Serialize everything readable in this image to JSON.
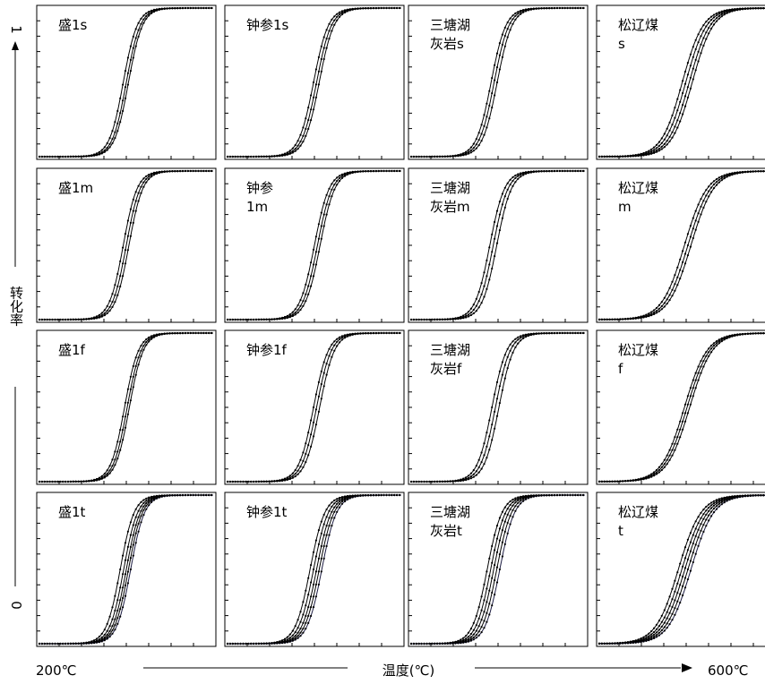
{
  "figure": {
    "y_axis": {
      "top_label": "1",
      "bottom_label": "0",
      "title": "转化率"
    },
    "x_axis": {
      "left_label": "200℃",
      "right_label": "600℃",
      "title": "温度(℃)"
    }
  },
  "chart_data": {
    "type": "line",
    "x_range": [
      200,
      600
    ],
    "y_range": [
      0,
      1
    ],
    "grid": false,
    "columns": [
      "盛1",
      "钟参1",
      "三塘湖灰岩",
      "松辽煤"
    ],
    "rows": [
      "s",
      "m",
      "f",
      "t"
    ],
    "panels": [
      {
        "row": 0,
        "col": 0,
        "label_lines": [
          "盛1s"
        ],
        "curves": [
          {
            "mid": 393,
            "scale": 16
          },
          {
            "mid": 400,
            "scale": 16
          },
          {
            "mid": 405,
            "scale": 16
          }
        ]
      },
      {
        "row": 0,
        "col": 1,
        "label_lines": [
          "钟参1s"
        ],
        "curves": [
          {
            "mid": 398,
            "scale": 17
          },
          {
            "mid": 405,
            "scale": 17
          },
          {
            "mid": 411,
            "scale": 17
          }
        ]
      },
      {
        "row": 0,
        "col": 2,
        "label_lines": [
          "三塘湖",
          "灰岩s"
        ],
        "curves": [
          {
            "mid": 384,
            "scale": 17
          },
          {
            "mid": 391,
            "scale": 17
          },
          {
            "mid": 398,
            "scale": 17
          }
        ]
      },
      {
        "row": 0,
        "col": 3,
        "label_lines": [
          "松辽煤",
          "s"
        ],
        "curves": [
          {
            "mid": 391,
            "scale": 24
          },
          {
            "mid": 399,
            "scale": 24
          },
          {
            "mid": 407,
            "scale": 24
          },
          {
            "mid": 414,
            "scale": 24
          }
        ]
      },
      {
        "row": 1,
        "col": 0,
        "label_lines": [
          "盛1m"
        ],
        "curves": [
          {
            "mid": 393,
            "scale": 16
          },
          {
            "mid": 400,
            "scale": 16
          },
          {
            "mid": 406,
            "scale": 16
          }
        ]
      },
      {
        "row": 1,
        "col": 1,
        "label_lines": [
          "钟参",
          "1m"
        ],
        "curves": [
          {
            "mid": 400,
            "scale": 17
          },
          {
            "mid": 407,
            "scale": 17
          },
          {
            "mid": 413,
            "scale": 17
          }
        ]
      },
      {
        "row": 1,
        "col": 2,
        "label_lines": [
          "三塘湖",
          "灰岩m"
        ],
        "curves": [
          {
            "mid": 381,
            "scale": 17
          },
          {
            "mid": 389,
            "scale": 17
          },
          {
            "mid": 397,
            "scale": 17
          }
        ]
      },
      {
        "row": 1,
        "col": 3,
        "label_lines": [
          "松辽煤",
          "m"
        ],
        "curves": [
          {
            "mid": 396,
            "scale": 26
          },
          {
            "mid": 404,
            "scale": 26
          },
          {
            "mid": 411,
            "scale": 26
          }
        ]
      },
      {
        "row": 2,
        "col": 0,
        "label_lines": [
          "盛1f"
        ],
        "curves": [
          {
            "mid": 396,
            "scale": 16
          },
          {
            "mid": 402,
            "scale": 16
          },
          {
            "mid": 407,
            "scale": 16
          }
        ]
      },
      {
        "row": 2,
        "col": 1,
        "label_lines": [
          "钟参1f"
        ],
        "curves": [
          {
            "mid": 398,
            "scale": 17
          },
          {
            "mid": 405,
            "scale": 17
          },
          {
            "mid": 412,
            "scale": 17
          }
        ]
      },
      {
        "row": 2,
        "col": 2,
        "label_lines": [
          "三塘湖",
          "灰岩f"
        ],
        "curves": [
          {
            "mid": 386,
            "scale": 17
          },
          {
            "mid": 394,
            "scale": 17
          },
          {
            "mid": 402,
            "scale": 17
          }
        ]
      },
      {
        "row": 2,
        "col": 3,
        "label_lines": [
          "松辽煤",
          "f"
        ],
        "curves": [
          {
            "mid": 396,
            "scale": 26
          },
          {
            "mid": 402,
            "scale": 26
          },
          {
            "mid": 408,
            "scale": 26
          }
        ]
      },
      {
        "row": 3,
        "col": 0,
        "label_lines": [
          "盛1t"
        ],
        "curves": [
          {
            "mid": 386,
            "scale": 16
          },
          {
            "mid": 394,
            "scale": 16
          },
          {
            "mid": 400,
            "scale": 16
          },
          {
            "mid": 405,
            "scale": 16
          },
          {
            "mid": 410,
            "scale": 16
          }
        ]
      },
      {
        "row": 3,
        "col": 1,
        "label_lines": [
          "钟参1t"
        ],
        "curves": [
          {
            "mid": 390,
            "scale": 17
          },
          {
            "mid": 398,
            "scale": 17
          },
          {
            "mid": 405,
            "scale": 17
          },
          {
            "mid": 411,
            "scale": 17
          },
          {
            "mid": 417,
            "scale": 17
          }
        ]
      },
      {
        "row": 3,
        "col": 2,
        "label_lines": [
          "三塘湖",
          "灰岩t"
        ],
        "curves": [
          {
            "mid": 375,
            "scale": 17
          },
          {
            "mid": 383,
            "scale": 17
          },
          {
            "mid": 390,
            "scale": 17
          },
          {
            "mid": 397,
            "scale": 17
          },
          {
            "mid": 404,
            "scale": 17
          }
        ]
      },
      {
        "row": 3,
        "col": 3,
        "label_lines": [
          "松辽煤",
          "t"
        ],
        "curves": [
          {
            "mid": 382,
            "scale": 26
          },
          {
            "mid": 390,
            "scale": 26
          },
          {
            "mid": 397,
            "scale": 26
          },
          {
            "mid": 404,
            "scale": 26
          },
          {
            "mid": 411,
            "scale": 26
          }
        ]
      }
    ]
  }
}
